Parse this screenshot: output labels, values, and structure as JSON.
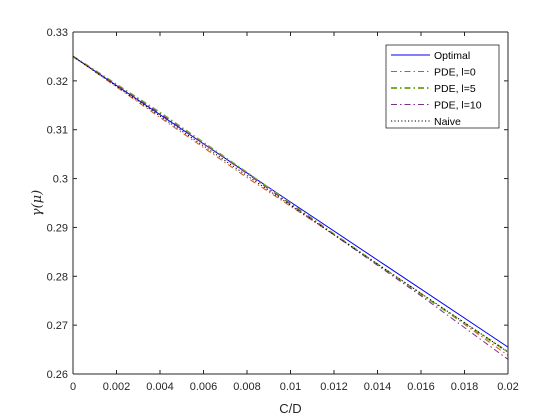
{
  "chart_data": {
    "type": "line",
    "title": "",
    "xlabel": "C/D",
    "ylabel": "γ(μ)",
    "xlim": [
      0,
      0.02
    ],
    "ylim": [
      0.26,
      0.33
    ],
    "xticks": [
      "0",
      "0.002",
      "0.004",
      "0.006",
      "0.008",
      "0.01",
      "0.012",
      "0.014",
      "0.016",
      "0.018",
      "0.02"
    ],
    "yticks": [
      "0.26",
      "0.27",
      "0.28",
      "0.29",
      "0.3",
      "0.31",
      "0.32",
      "0.33"
    ],
    "grid": false,
    "legend_position": "top-right",
    "series": [
      {
        "name": "Optimal",
        "color": "#0000ff",
        "style": "solid",
        "x": [
          0,
          0.01,
          0.02
        ],
        "y": [
          0.325,
          0.2952,
          0.2655
        ]
      },
      {
        "name": "PDE, l=0",
        "color": "#d95319",
        "style": "dashdot",
        "x": [
          0,
          0.004,
          0.008,
          0.012,
          0.016,
          0.02
        ],
        "y": [
          0.325,
          0.3125,
          0.3002,
          0.2885,
          0.2765,
          0.2638
        ]
      },
      {
        "name": "PDE, l=5",
        "color": "#77ac30",
        "style": "dashdot-thick",
        "x": [
          0,
          0.004,
          0.008,
          0.012,
          0.016,
          0.02
        ],
        "y": [
          0.325,
          0.3135,
          0.3012,
          0.2886,
          0.2763,
          0.2645
        ]
      },
      {
        "name": "PDE, l=10",
        "color": "#7e2f8e",
        "style": "dashdot",
        "x": [
          0,
          0.004,
          0.008,
          0.012,
          0.016,
          0.02
        ],
        "y": [
          0.325,
          0.3133,
          0.301,
          0.2885,
          0.276,
          0.263
        ]
      },
      {
        "name": "Naive",
        "color": "#000000",
        "style": "dotted",
        "x": [
          0,
          0.004,
          0.008,
          0.012,
          0.016,
          0.02
        ],
        "y": [
          0.325,
          0.3128,
          0.3006,
          0.2885,
          0.2765,
          0.2645
        ]
      }
    ]
  }
}
